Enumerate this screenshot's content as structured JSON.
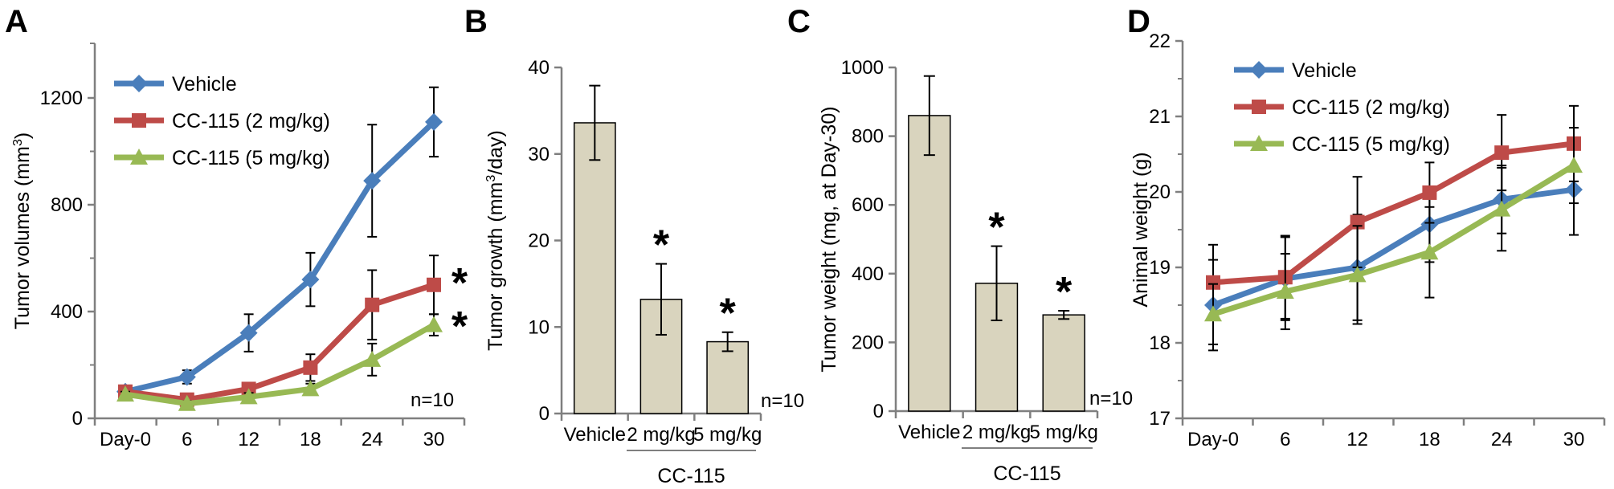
{
  "colors": {
    "vehicle": "#4a7ebb",
    "cc115_2": "#be4b48",
    "cc115_5": "#98b954",
    "bar_fill": "#d9d4be",
    "axis": "#7f7f7f"
  },
  "chart_data": [
    {
      "panel": "A",
      "type": "line",
      "xlabel": "",
      "ylabel": "Tumor volumes (mm",
      "ylabel_sup": "3",
      "ylabel_end": ")",
      "categories": [
        "Day-0",
        "6",
        "12",
        "18",
        "24",
        "30"
      ],
      "yticks": [
        "0",
        "400",
        "800",
        "1200"
      ],
      "ylim": [
        0,
        1200
      ],
      "series": [
        {
          "name": "Vehicle",
          "marker": "diamond",
          "color": "#4a7ebb",
          "values": [
            100,
            155,
            320,
            520,
            890,
            1110
          ],
          "errors": [
            15,
            25,
            70,
            100,
            210,
            130
          ]
        },
        {
          "name": "CC-115 (2 mg/kg)",
          "marker": "square",
          "color": "#be4b48",
          "values": [
            100,
            70,
            110,
            190,
            425,
            500
          ],
          "errors": [
            15,
            15,
            20,
            50,
            130,
            110
          ]
        },
        {
          "name": "CC-115 (5 mg/kg)",
          "marker": "triangle",
          "color": "#98b954",
          "values": [
            90,
            55,
            80,
            110,
            220,
            350
          ],
          "errors": [
            10,
            10,
            15,
            20,
            60,
            40
          ]
        }
      ],
      "annotations": [
        "*",
        "*"
      ],
      "note": "n=10",
      "legend": "top-left",
      "grid": false
    },
    {
      "panel": "B",
      "type": "bar",
      "ylabel": "Tumor growth (mm",
      "ylabel_sup": "3",
      "ylabel_end": "/day)",
      "categories": [
        "Vehicle",
        "2 mg/kg",
        "5 mg/kg"
      ],
      "group_label": "CC-115",
      "values": [
        33.6,
        13.2,
        8.3
      ],
      "errors": [
        4.3,
        4.1,
        1.1
      ],
      "stars": [
        "",
        "*",
        "*"
      ],
      "yticks": [
        "0",
        "10",
        "20",
        "30",
        "40"
      ],
      "ylim": [
        0,
        40
      ],
      "note": "n=10",
      "grid": false
    },
    {
      "panel": "C",
      "type": "bar",
      "ylabel": "Tumor weight (mg, at Day-30)",
      "categories": [
        "Vehicle",
        "2 mg/kg",
        "5 mg/kg"
      ],
      "group_label": "CC-115",
      "values": [
        860,
        372,
        280
      ],
      "errors": [
        115,
        108,
        12
      ],
      "stars": [
        "",
        "*",
        "*"
      ],
      "yticks": [
        "0",
        "200",
        "400",
        "600",
        "800",
        "1000"
      ],
      "ylim": [
        0,
        1000
      ],
      "note": "n=10",
      "grid": false
    },
    {
      "panel": "D",
      "type": "line",
      "ylabel": "Animal weight (g)",
      "categories": [
        "Day-0",
        "6",
        "12",
        "18",
        "24",
        "30"
      ],
      "yticks": [
        "17",
        "18",
        "19",
        "20",
        "21",
        "22"
      ],
      "ylim": [
        17,
        22
      ],
      "series": [
        {
          "name": "Vehicle",
          "marker": "diamond",
          "color": "#4a7ebb",
          "values": [
            18.5,
            18.85,
            19.0,
            19.57,
            19.9,
            20.03
          ],
          "errors": [
            0.6,
            0.55,
            0.7,
            0.5,
            0.45,
            0.6
          ]
        },
        {
          "name": "CC-115 (2 mg/kg)",
          "marker": "square",
          "color": "#be4b48",
          "values": [
            18.8,
            18.87,
            19.6,
            19.99,
            20.52,
            20.64
          ],
          "errors": [
            0.5,
            0.55,
            0.6,
            0.4,
            0.5,
            0.5
          ]
        },
        {
          "name": "CC-115 (5 mg/kg)",
          "marker": "triangle",
          "color": "#98b954",
          "values": [
            18.38,
            18.68,
            18.9,
            19.2,
            19.77,
            20.35
          ],
          "errors": [
            0.4,
            0.5,
            0.65,
            0.6,
            0.55,
            0.5
          ]
        }
      ],
      "legend": "top-left",
      "grid": false
    }
  ]
}
